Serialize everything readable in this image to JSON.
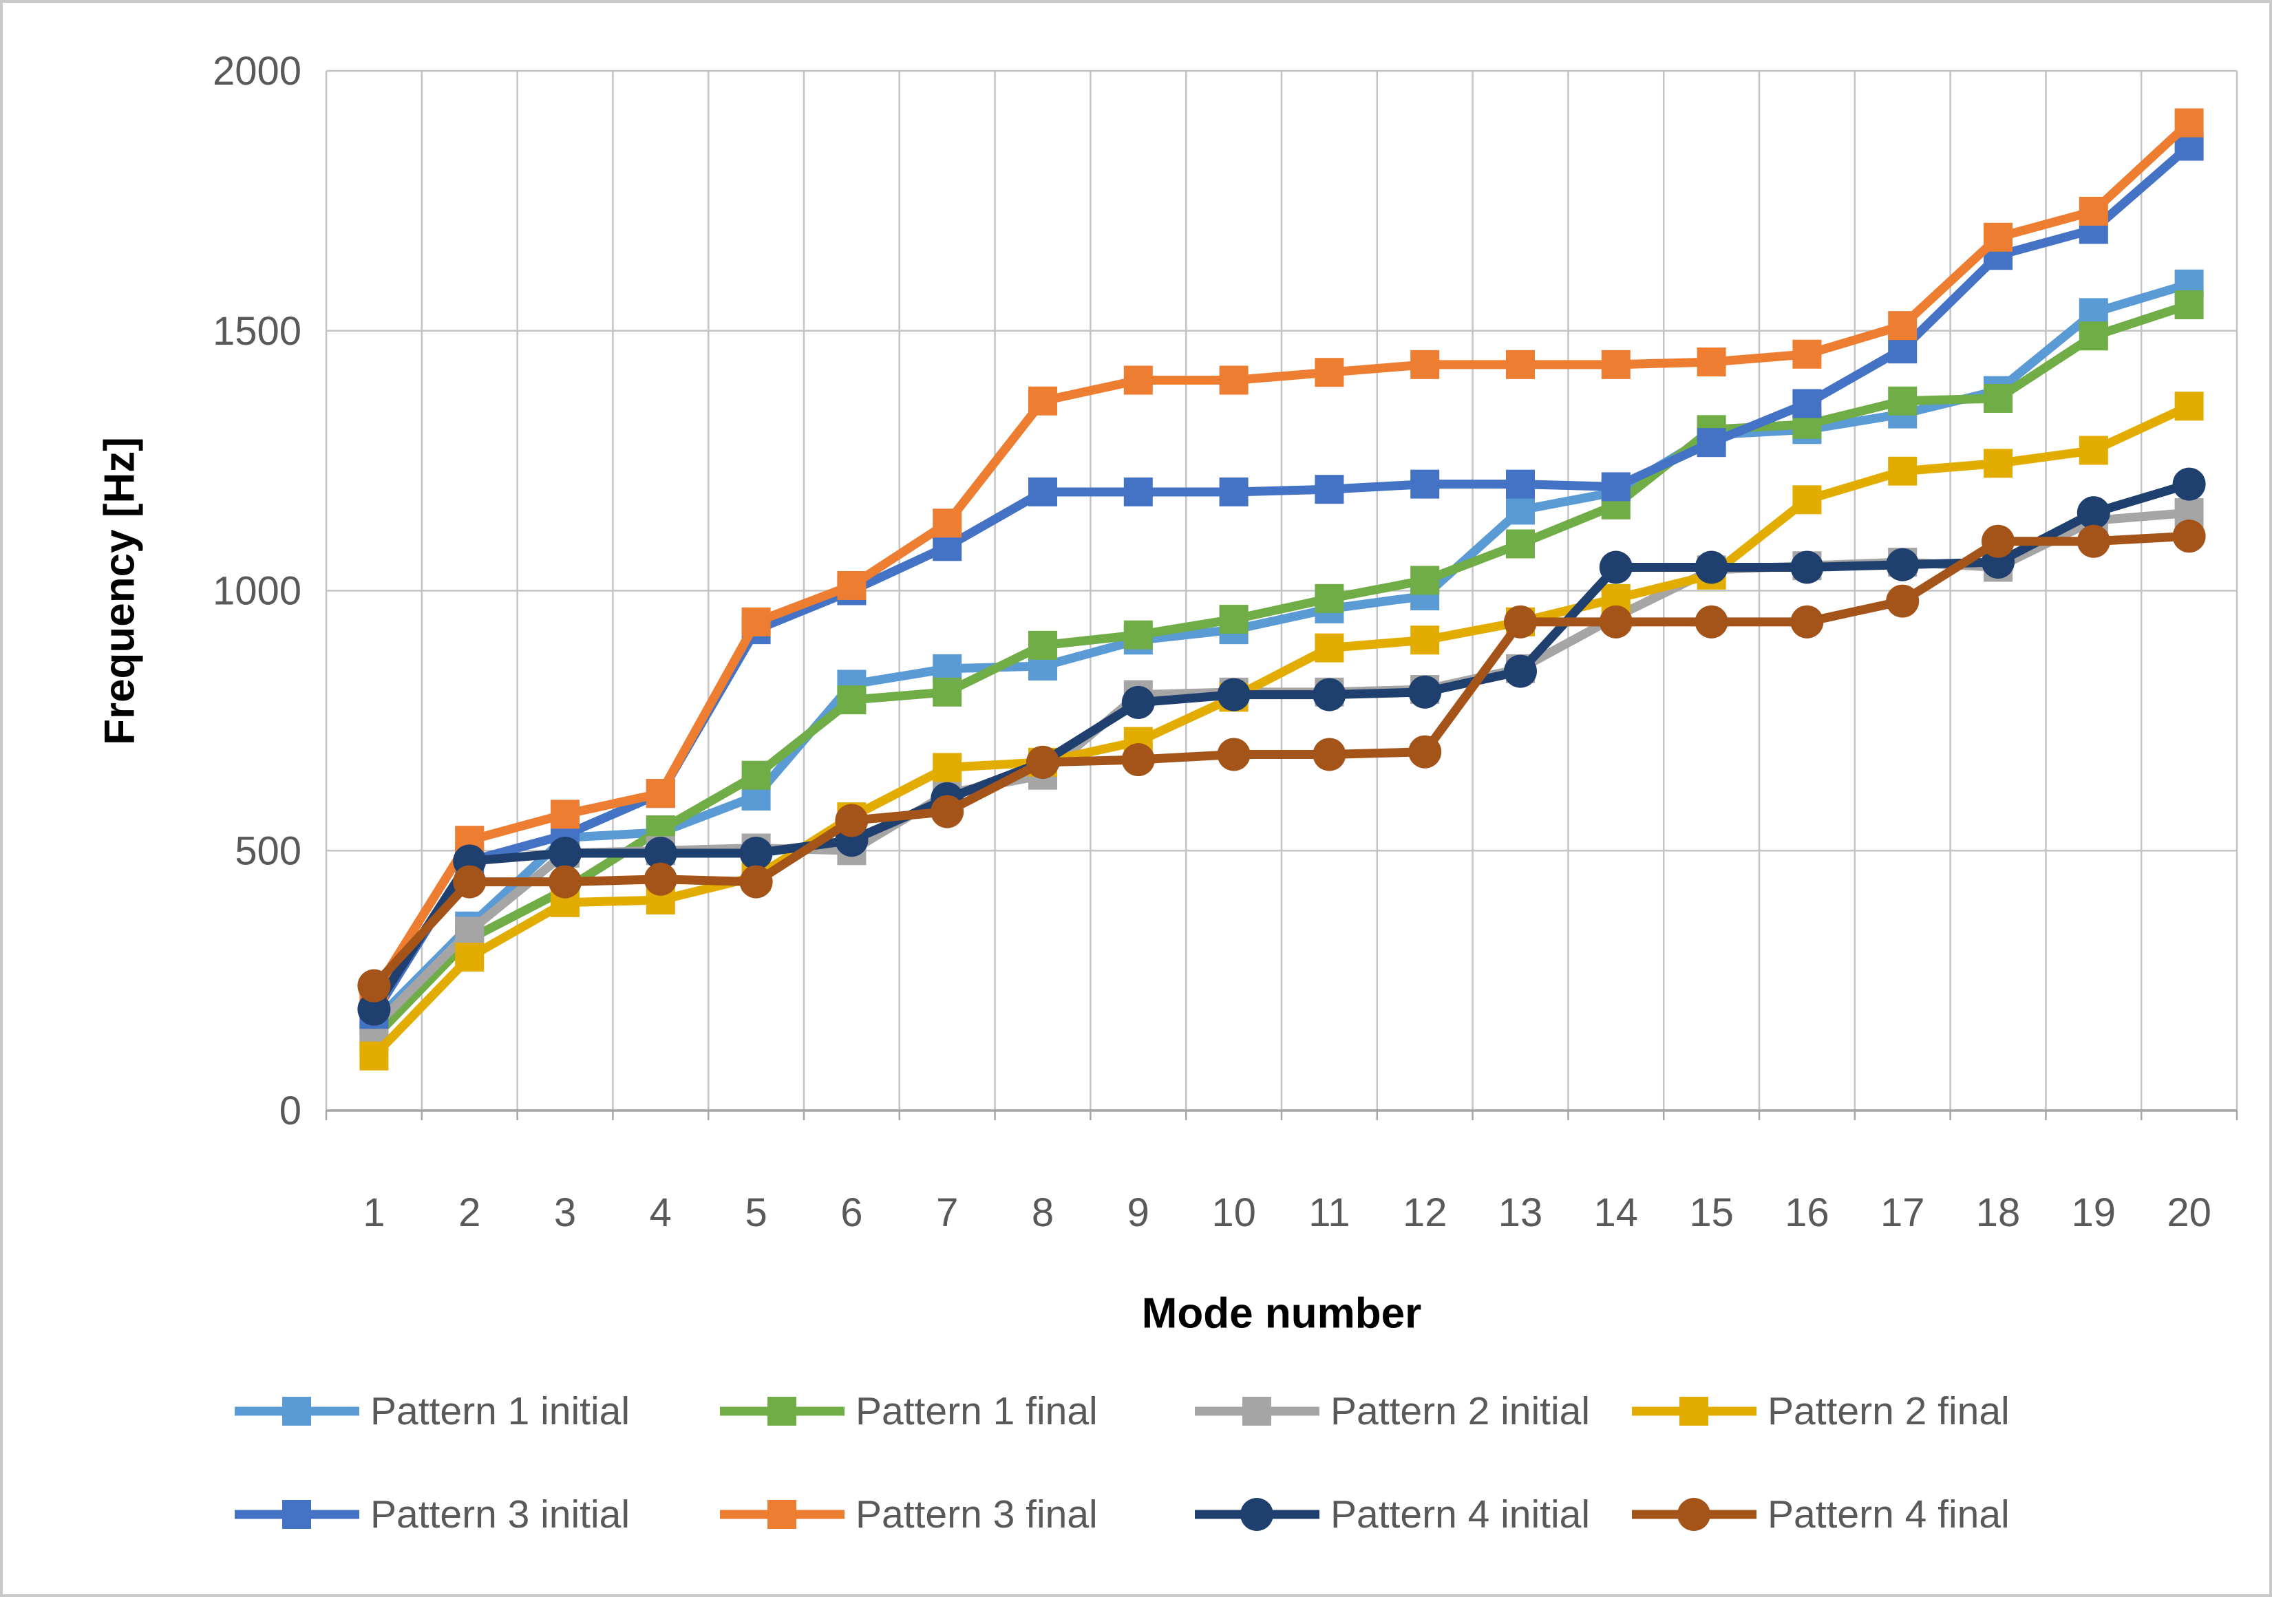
{
  "figure": {
    "background": "#ffffff",
    "border_color": "#c9c9c9"
  },
  "chart_data": {
    "type": "line",
    "title": "",
    "xlabel": "Mode number",
    "ylabel": "Frequency [Hz]",
    "x": [
      1,
      2,
      3,
      4,
      5,
      6,
      7,
      8,
      9,
      10,
      11,
      12,
      13,
      14,
      15,
      16,
      17,
      18,
      19,
      20
    ],
    "ylim": [
      0,
      2000
    ],
    "yticks": [
      0,
      500,
      1000,
      1500,
      2000
    ],
    "grid": true,
    "legend_position": "bottom",
    "axis_colors": {
      "grid_line": "#c3c3c3",
      "axis_line": "#a6a6a6",
      "tick_text": "#595959",
      "title_text": "#000000"
    },
    "series": [
      {
        "name": "Pattern 1 initial",
        "color": "#5B9BD5",
        "marker": "square",
        "values": [
          170,
          355,
          525,
          535,
          605,
          820,
          850,
          855,
          905,
          925,
          965,
          990,
          1155,
          1190,
          1300,
          1310,
          1340,
          1385,
          1535,
          1590
        ]
      },
      {
        "name": "Pattern 1 final",
        "color": "#70AD47",
        "marker": "square",
        "values": [
          140,
          330,
          425,
          540,
          645,
          790,
          805,
          895,
          915,
          945,
          985,
          1020,
          1090,
          1165,
          1310,
          1320,
          1365,
          1370,
          1490,
          1550
        ]
      },
      {
        "name": "Pattern 2 initial",
        "color": "#A5A5A5",
        "marker": "square",
        "values": [
          160,
          345,
          495,
          500,
          505,
          500,
          610,
          645,
          800,
          805,
          805,
          810,
          850,
          950,
          1040,
          1048,
          1055,
          1045,
          1135,
          1150
        ]
      },
      {
        "name": "Pattern 2 final",
        "color": "#E2AC00",
        "marker": "square",
        "values": [
          105,
          295,
          400,
          405,
          450,
          565,
          660,
          670,
          710,
          795,
          890,
          905,
          940,
          985,
          1030,
          1175,
          1230,
          1245,
          1270,
          1355
        ]
      },
      {
        "name": "Pattern 3 initial",
        "color": "#4472C4",
        "marker": "square",
        "values": [
          185,
          480,
          530,
          610,
          925,
          1000,
          1085,
          1190,
          1190,
          1190,
          1195,
          1205,
          1205,
          1200,
          1285,
          1360,
          1465,
          1645,
          1695,
          1855
        ]
      },
      {
        "name": "Pattern 3 final",
        "color": "#ED7D31",
        "marker": "square",
        "values": [
          225,
          520,
          570,
          610,
          940,
          1010,
          1130,
          1365,
          1405,
          1405,
          1420,
          1435,
          1435,
          1435,
          1440,
          1455,
          1510,
          1680,
          1730,
          1900
        ]
      },
      {
        "name": "Pattern 4 initial",
        "color": "#1F406E",
        "marker": "circle",
        "values": [
          195,
          480,
          495,
          495,
          495,
          520,
          600,
          670,
          785,
          800,
          800,
          805,
          845,
          1045,
          1045,
          1045,
          1050,
          1055,
          1150,
          1205
        ]
      },
      {
        "name": "Pattern 4 final",
        "color": "#A55419",
        "marker": "circle",
        "values": [
          240,
          440,
          440,
          445,
          440,
          558,
          575,
          670,
          675,
          685,
          685,
          690,
          940,
          940,
          940,
          940,
          980,
          1095,
          1095,
          1105
        ]
      }
    ]
  },
  "legend": {
    "rows": 2,
    "items_per_row": 4
  }
}
